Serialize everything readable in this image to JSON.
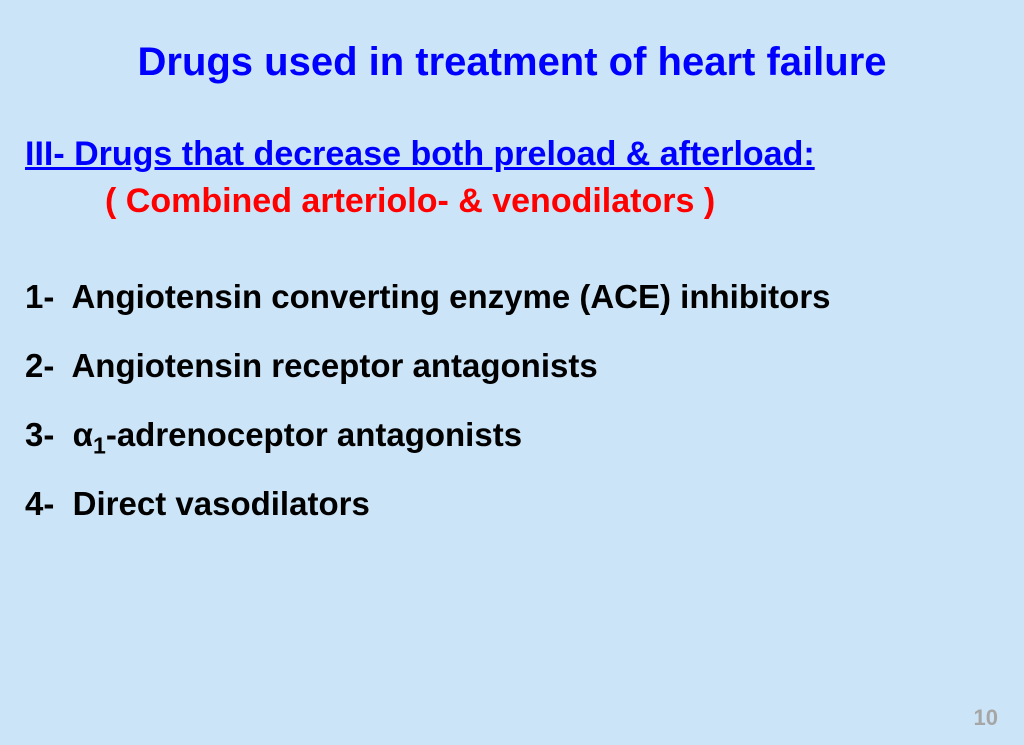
{
  "colors": {
    "background": "#cce4f7",
    "title": "#0000ff",
    "subtitle": "#0000ff",
    "descriptor": "#ff0000",
    "body": "#000000",
    "pagenum": "#a6a6a6"
  },
  "typography": {
    "title_fontsize": 40,
    "subtitle_fontsize": 34,
    "descriptor_fontsize": 34,
    "list_fontsize": 33,
    "pagenum_fontsize": 22,
    "font_family": "Arial",
    "all_bold": true
  },
  "title": "Drugs used in treatment of heart failure",
  "subtitle": "III- Drugs that decrease both preload & afterload:",
  "descriptor": "( Combined arteriolo- & venodilators )",
  "items": [
    {
      "num": "1-",
      "text": " Angiotensin converting enzyme (ACE) inhibitors"
    },
    {
      "num": "2-",
      "text": " Angiotensin receptor antagonists"
    },
    {
      "num": "3-",
      "text_pre": " α",
      "sub": "1",
      "text_post": "-adrenoceptor antagonists"
    },
    {
      "num": "4-",
      "text": " Direct vasodilators"
    }
  ],
  "page_number": "10"
}
